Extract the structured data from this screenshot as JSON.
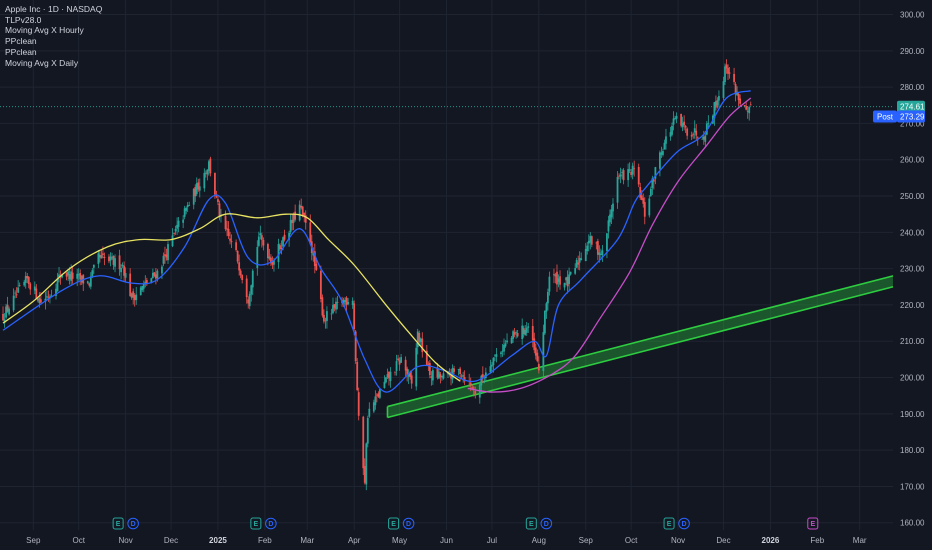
{
  "legend": {
    "title": "Apple Inc · 1D · NASDAQ",
    "indicators": [
      "TLPv28.0",
      "Moving Avg X Hourly",
      "PPclean",
      "PPclean",
      "Moving Avg X Daily"
    ]
  },
  "colors": {
    "background": "#131722",
    "grid": "#1f2431",
    "up": "#26a69a",
    "down": "#ef5350",
    "ma_fast": "#2962ff",
    "ma_mid": "#e1bee7",
    "ma_long": "#e8e362",
    "ma_slow": "#c64ec8",
    "trend_channel": "#2ecc40",
    "price_badge": "#26a69a",
    "post_badge": "#2962ff"
  },
  "chart_data": {
    "type": "candlestick",
    "symbol": "Apple Inc",
    "interval": "1D",
    "exchange": "NASDAQ",
    "ylim": [
      158,
      304
    ],
    "y_ticks": [
      160,
      170,
      180,
      190,
      200,
      210,
      220,
      230,
      240,
      250,
      260,
      270,
      280,
      290,
      300
    ],
    "y_tick_labels": [
      "160.00",
      "170.00",
      "180.00",
      "190.00",
      "200.00",
      "210.00",
      "220.00",
      "230.00",
      "240.00",
      "250.00",
      "260.00",
      "270.00",
      "280.00",
      "290.00",
      "300.00"
    ],
    "x_ticks": [
      {
        "label": "Sep",
        "date": "2024-09-01"
      },
      {
        "label": "Oct",
        "date": "2024-10-01"
      },
      {
        "label": "Nov",
        "date": "2024-11-01"
      },
      {
        "label": "Dec",
        "date": "2024-12-01"
      },
      {
        "label": "2025",
        "date": "2025-01-01",
        "bold": true
      },
      {
        "label": "Feb",
        "date": "2025-02-01"
      },
      {
        "label": "Mar",
        "date": "2025-03-01"
      },
      {
        "label": "Apr",
        "date": "2025-04-01"
      },
      {
        "label": "May",
        "date": "2025-05-01"
      },
      {
        "label": "Jun",
        "date": "2025-06-01"
      },
      {
        "label": "Jul",
        "date": "2025-07-01"
      },
      {
        "label": "Aug",
        "date": "2025-08-01"
      },
      {
        "label": "Sep",
        "date": "2025-09-01"
      },
      {
        "label": "Oct",
        "date": "2025-10-01"
      },
      {
        "label": "Nov",
        "date": "2025-11-01"
      },
      {
        "label": "Dec",
        "date": "2025-12-01"
      },
      {
        "label": "2026",
        "date": "2026-01-01",
        "bold": true
      },
      {
        "label": "Feb",
        "date": "2026-02-01"
      },
      {
        "label": "Mar",
        "date": "2026-03-01"
      }
    ],
    "x_range": [
      "2024-08-10",
      "2026-03-23"
    ],
    "price_path": [
      [
        "2024-08-12",
        217
      ],
      [
        "2024-08-28",
        227
      ],
      [
        "2024-09-06",
        221
      ],
      [
        "2024-09-12",
        223
      ],
      [
        "2024-09-20",
        229
      ],
      [
        "2024-10-08",
        226
      ],
      [
        "2024-10-14",
        233
      ],
      [
        "2024-10-30",
        231
      ],
      [
        "2024-11-05",
        222
      ],
      [
        "2024-11-15",
        226
      ],
      [
        "2024-11-22",
        229
      ],
      [
        "2024-12-06",
        242
      ],
      [
        "2024-12-26",
        259
      ],
      [
        "2025-01-03",
        243
      ],
      [
        "2025-01-13",
        234
      ],
      [
        "2025-01-21",
        222
      ],
      [
        "2025-01-28",
        239
      ],
      [
        "2025-02-06",
        232
      ],
      [
        "2025-02-24",
        247
      ],
      [
        "2025-03-03",
        238
      ],
      [
        "2025-03-12",
        216
      ],
      [
        "2025-03-24",
        221
      ],
      [
        "2025-03-31",
        222
      ],
      [
        "2025-04-04",
        188
      ],
      [
        "2025-04-08",
        172
      ],
      [
        "2025-04-10",
        190
      ],
      [
        "2025-04-22",
        199
      ],
      [
        "2025-05-02",
        205
      ],
      [
        "2025-05-09",
        198
      ],
      [
        "2025-05-13",
        212
      ],
      [
        "2025-05-21",
        201
      ],
      [
        "2025-05-30",
        200
      ],
      [
        "2025-06-10",
        202
      ],
      [
        "2025-06-20",
        196
      ],
      [
        "2025-07-01",
        205
      ],
      [
        "2025-07-14",
        211
      ],
      [
        "2025-07-25",
        214
      ],
      [
        "2025-08-01",
        202
      ],
      [
        "2025-08-08",
        228
      ],
      [
        "2025-08-20",
        226
      ],
      [
        "2025-09-03",
        238
      ],
      [
        "2025-09-12",
        234
      ],
      [
        "2025-09-22",
        255
      ],
      [
        "2025-10-03",
        257
      ],
      [
        "2025-10-10",
        245
      ],
      [
        "2025-10-20",
        262
      ],
      [
        "2025-10-30",
        271
      ],
      [
        "2025-11-07",
        268
      ],
      [
        "2025-11-18",
        267
      ],
      [
        "2025-11-28",
        278
      ],
      [
        "2025-12-03",
        286
      ],
      [
        "2025-12-10",
        278
      ],
      [
        "2025-12-17",
        272
      ],
      [
        "2025-12-19",
        274
      ]
    ],
    "moving_averages": [
      {
        "id": "ma_fast",
        "points": [
          [
            "2024-08-12",
            213
          ],
          [
            "2024-09-20",
            224
          ],
          [
            "2024-10-14",
            228
          ],
          [
            "2024-11-05",
            226
          ],
          [
            "2024-11-22",
            227
          ],
          [
            "2024-12-10",
            236
          ],
          [
            "2024-12-26",
            249
          ],
          [
            "2025-01-06",
            248
          ],
          [
            "2025-01-21",
            233
          ],
          [
            "2025-02-06",
            232
          ],
          [
            "2025-02-24",
            241
          ],
          [
            "2025-03-10",
            230
          ],
          [
            "2025-03-24",
            221
          ],
          [
            "2025-04-08",
            205
          ],
          [
            "2025-04-22",
            196
          ],
          [
            "2025-05-13",
            203
          ],
          [
            "2025-05-30",
            202
          ],
          [
            "2025-06-20",
            199
          ],
          [
            "2025-07-14",
            206
          ],
          [
            "2025-07-29",
            210
          ],
          [
            "2025-08-06",
            206
          ],
          [
            "2025-08-14",
            220
          ],
          [
            "2025-08-29",
            227
          ],
          [
            "2025-09-22",
            238
          ],
          [
            "2025-10-03",
            248
          ],
          [
            "2025-10-10",
            252
          ],
          [
            "2025-10-31",
            262
          ],
          [
            "2025-11-18",
            267
          ],
          [
            "2025-12-03",
            277
          ],
          [
            "2025-12-19",
            279
          ]
        ]
      },
      {
        "id": "ma_long",
        "points": [
          [
            "2024-08-12",
            215
          ],
          [
            "2024-09-01",
            221
          ],
          [
            "2024-09-25",
            230
          ],
          [
            "2024-10-20",
            236
          ],
          [
            "2024-11-10",
            238
          ],
          [
            "2024-12-01",
            238
          ],
          [
            "2024-12-20",
            241
          ],
          [
            "2025-01-06",
            245
          ],
          [
            "2025-01-27",
            244
          ],
          [
            "2025-02-15",
            245
          ],
          [
            "2025-03-01",
            244
          ],
          [
            "2025-03-15",
            238
          ],
          [
            "2025-04-01",
            231
          ],
          [
            "2025-04-22",
            220
          ],
          [
            "2025-05-08",
            212
          ],
          [
            "2025-05-25",
            204
          ],
          [
            "2025-06-10",
            199
          ]
        ]
      },
      {
        "id": "ma_slow",
        "points": [
          [
            "2025-06-15",
            197
          ],
          [
            "2025-07-01",
            196
          ],
          [
            "2025-07-20",
            197
          ],
          [
            "2025-08-10",
            201
          ],
          [
            "2025-08-25",
            206
          ],
          [
            "2025-09-10",
            216
          ],
          [
            "2025-09-30",
            229
          ],
          [
            "2025-10-15",
            242
          ],
          [
            "2025-11-01",
            254
          ],
          [
            "2025-11-20",
            264
          ],
          [
            "2025-12-05",
            272
          ],
          [
            "2025-12-19",
            277
          ]
        ]
      }
    ],
    "trend_channel": {
      "start": {
        "date": "2025-04-23",
        "value_lower": 189,
        "value_upper": 192
      },
      "end": {
        "date": "2026-03-23",
        "value_lower": 225,
        "value_upper": 228
      }
    },
    "events": [
      {
        "date": "2024-11-01",
        "labels": [
          "E",
          "D"
        ]
      },
      {
        "date": "2025-01-31",
        "labels": [
          "E",
          "D"
        ]
      },
      {
        "date": "2025-05-02",
        "labels": [
          "E",
          "D"
        ]
      },
      {
        "date": "2025-08-01",
        "labels": [
          "E",
          "D"
        ]
      },
      {
        "date": "2025-10-31",
        "labels": [
          "E",
          "D"
        ]
      },
      {
        "date": "2026-01-29",
        "labels": [
          "E"
        ],
        "upcoming": true
      }
    ],
    "last_price": {
      "value": 274.61,
      "label": "274.61"
    },
    "post_price": {
      "prefix": "Post",
      "value": 273.29,
      "label": "273.29"
    }
  }
}
